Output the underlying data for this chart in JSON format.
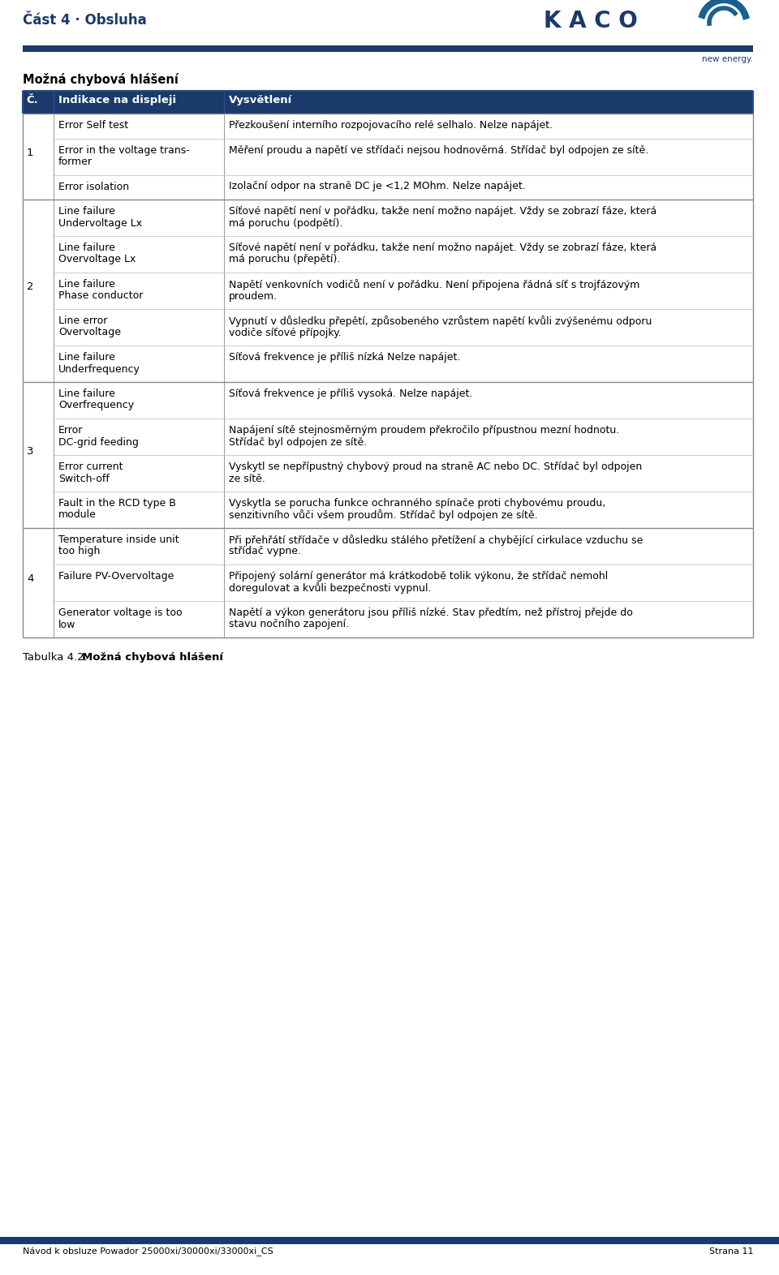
{
  "page_title": "Část 4 · Obsluha",
  "section_title": "Možná chybová hlášení",
  "header_bg": "#1a3a6b",
  "header_fg": "#ffffff",
  "col_headers": [
    "Č.",
    "Indikace na displeji",
    "Vysvětlení"
  ],
  "rows": [
    {
      "num": "1",
      "entries": [
        {
          "display": "Error Self test",
          "explanation": "Přezkoušení interního rozpojovacího relé selhalo. Nelze napájet."
        },
        {
          "display": "Error in the voltage trans-\nformer",
          "explanation": "Měření proudu a napětí ve střídači nejsou hodnověrná. Střídač byl odpojen ze sítě."
        },
        {
          "display": "Error isolation",
          "explanation": "Izolační odpor na straně DC je <1,2 MOhm. Nelze napájet."
        }
      ]
    },
    {
      "num": "2",
      "entries": [
        {
          "display": "Line failure\nUndervoltage Lx",
          "explanation": "Síťové napětí není v pořádku, takže není možno napájet. Vždy se zobrazí fáze, která\nmá poruchu (podpětí)."
        },
        {
          "display": "Line failure\nOvervoltage Lx",
          "explanation": "Síťové napětí není v pořádku, takže není možno napájet. Vždy se zobrazí fáze, která\nmá poruchu (přepětí)."
        },
        {
          "display": "Line failure\nPhase conductor",
          "explanation": "Napětí venkovních vodičů není v pořádku. Není připojena řádná síť s trojfázovým\nproudem."
        },
        {
          "display": "Line error\nOvervoltage",
          "explanation": "Vypnutí v důsledku přepětí, způsobeného vzrůstem napětí kvůli zvýšenému odporu\nvodiče síťové přípojky."
        },
        {
          "display": "Line failure\nUnderfrequency",
          "explanation": "Síťová frekvence je příliš nízká Nelze napájet."
        }
      ]
    },
    {
      "num": "3",
      "entries": [
        {
          "display": "Line failure\nOverfrequency",
          "explanation": "Síťová frekvence je příliš vysoká. Nelze napájet."
        },
        {
          "display": "Error\nDC-grid feeding",
          "explanation": "Napájení sítě stejnosměrným proudem překročilo přípustnou mezní hodnotu.\nStřídač byl odpojen ze sítě."
        },
        {
          "display": "Error current\nSwitch-off",
          "explanation": "Vyskytl se nepřípustný chybový proud na straně AC nebo DC. Střídač byl odpojen\nze sítě."
        },
        {
          "display": "Fault in the RCD type B\nmodule",
          "explanation": "Vyskytla se porucha funkce ochranného spínače proti chybovému proudu,\nsenzitivního vůči všem proudům. Střídač byl odpojen ze sítě."
        }
      ]
    },
    {
      "num": "4",
      "entries": [
        {
          "display": "Temperature inside unit\ntoo high",
          "explanation": "Při přehřátí střídače v důsledku stálého přetížení a chybějící cirkulace vzduchu se\nstřídač vypne."
        },
        {
          "display": "Failure PV-Overvoltage",
          "explanation": "Připojený solární generátor má krátkodobě tolik výkonu, že střídač nemohl\ndoregulovat a kvůli bezpečnosti vypnul."
        },
        {
          "display": "Generator voltage is too\nlow",
          "explanation": "Napětí a výkon generátoru jsou příliš nízké. Stav předtím, než přístroj přejde do\nstavu nočního zapojení."
        }
      ]
    }
  ],
  "footer_left": "Návod k obsluze Powador 25000xi/30000xi/33000xi_CS",
  "footer_right": "Strana 11",
  "caption": "Tabulka 4.2: Možná chybová hlášení",
  "blue_bar_color": "#1a3a6b",
  "text_color": "#000000",
  "line_color": "#888888",
  "bg_color": "#ffffff"
}
